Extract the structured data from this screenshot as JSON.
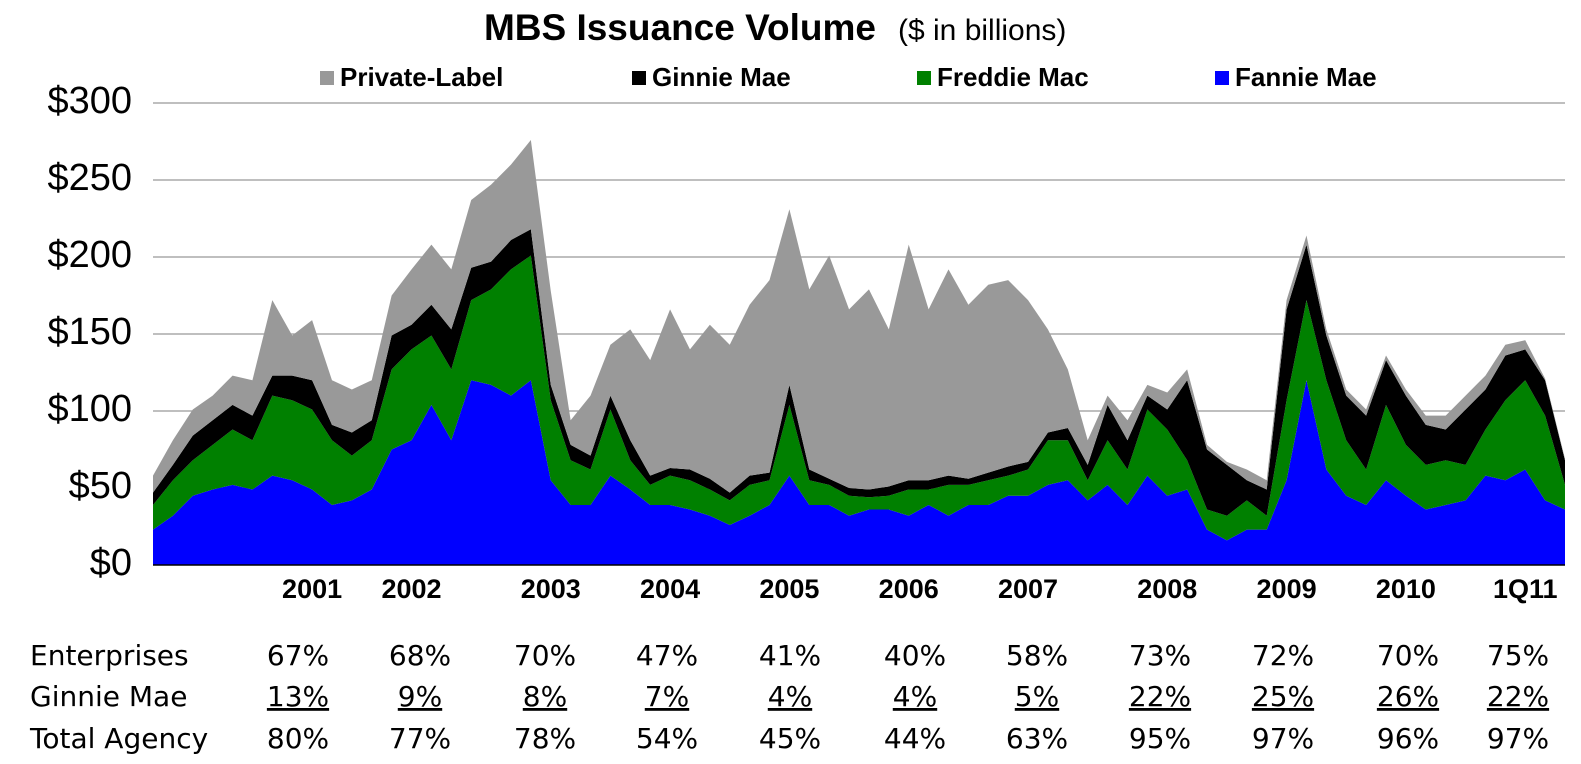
{
  "chart_data": {
    "type": "stacked_area",
    "title": "MBS Issuance Volume",
    "subtitle": "($ in billions)",
    "categories": [
      null,
      null,
      null,
      null,
      null,
      null,
      null,
      null,
      "2001",
      null,
      null,
      null,
      null,
      "2002",
      null,
      null,
      null,
      null,
      null,
      null,
      "2003",
      null,
      null,
      null,
      null,
      null,
      "2004",
      null,
      null,
      null,
      null,
      null,
      "2005",
      null,
      null,
      null,
      null,
      null,
      "2006",
      null,
      null,
      null,
      null,
      null,
      "2007",
      null,
      null,
      null,
      null,
      null,
      null,
      "2008",
      null,
      null,
      null,
      null,
      null,
      "2009",
      null,
      null,
      null,
      null,
      null,
      "2010",
      null,
      null,
      null,
      null,
      null,
      "1Q11",
      null,
      null
    ],
    "series": [
      {
        "name": "Fannie Mae",
        "color": "#0000ff",
        "values": [
          23,
          32,
          45,
          49,
          52,
          49,
          58,
          55,
          49,
          39,
          42,
          49,
          75,
          81,
          104,
          81,
          120,
          117,
          110,
          120,
          55,
          39,
          39,
          58,
          49,
          39,
          39,
          36,
          32,
          26,
          32,
          39,
          58,
          39,
          39,
          32,
          36,
          36,
          32,
          39,
          32,
          39,
          39,
          45,
          45,
          52,
          55,
          42,
          52,
          39,
          58,
          45,
          49,
          23,
          16,
          23,
          23,
          55,
          120,
          62,
          45,
          39,
          55,
          45,
          36,
          39,
          42,
          58,
          55,
          62,
          42,
          36
        ]
      },
      {
        "name": "Freddie Mac",
        "color": "#008000",
        "values": [
          16,
          23,
          23,
          29,
          36,
          32,
          52,
          52,
          52,
          42,
          29,
          32,
          52,
          59,
          45,
          46,
          52,
          62,
          82,
          81,
          52,
          29,
          23,
          43,
          19,
          13,
          19,
          19,
          17,
          16,
          20,
          16,
          46,
          16,
          13,
          13,
          8,
          9,
          17,
          10,
          20,
          13,
          16,
          13,
          17,
          29,
          26,
          13,
          29,
          23,
          43,
          43,
          19,
          13,
          16,
          19,
          9,
          52,
          52,
          58,
          36,
          23,
          49,
          33,
          29,
          29,
          23,
          30,
          52,
          58,
          55,
          16
        ]
      },
      {
        "name": "Ginnie Mae",
        "color": "#000000",
        "values": [
          8,
          10,
          16,
          16,
          16,
          16,
          13,
          16,
          19,
          10,
          15,
          13,
          22,
          16,
          20,
          26,
          21,
          18,
          19,
          17,
          10,
          10,
          9,
          9,
          13,
          6,
          5,
          7,
          7,
          5,
          6,
          5,
          13,
          7,
          4,
          5,
          5,
          6,
          6,
          6,
          6,
          4,
          5,
          6,
          5,
          5,
          8,
          10,
          23,
          19,
          9,
          13,
          52,
          39,
          33,
          13,
          17,
          59,
          36,
          29,
          29,
          35,
          29,
          32,
          26,
          20,
          36,
          26,
          29,
          20,
          23,
          16
        ]
      },
      {
        "name": "Private-Label",
        "color": "#999999",
        "values": [
          11,
          16,
          17,
          16,
          19,
          23,
          49,
          26,
          39,
          29,
          28,
          26,
          26,
          36,
          39,
          39,
          44,
          50,
          49,
          58,
          61,
          16,
          39,
          33,
          72,
          75,
          103,
          78,
          100,
          96,
          111,
          125,
          114,
          117,
          145,
          116,
          130,
          102,
          153,
          111,
          134,
          113,
          122,
          121,
          105,
          67,
          38,
          16,
          6,
          13,
          7,
          11,
          7,
          3,
          2,
          7,
          6,
          6,
          6,
          4,
          4,
          4,
          3,
          4,
          6,
          9,
          9,
          9,
          7,
          6,
          1,
          1
        ]
      }
    ],
    "ylim": [
      0,
      300
    ],
    "yticks": [
      {
        "value": 0,
        "label": "$0"
      },
      {
        "value": 50,
        "label": "$50"
      },
      {
        "value": 100,
        "label": "$100"
      },
      {
        "value": 150,
        "label": "$150"
      },
      {
        "value": 200,
        "label": "$200"
      },
      {
        "value": 250,
        "label": "$250"
      },
      {
        "value": 300,
        "label": "$300"
      }
    ],
    "grid": true,
    "legend": "top"
  },
  "table": {
    "columns": [
      "2001",
      "2002",
      "2003",
      "2004",
      "2005",
      "2006",
      "2007",
      "2008",
      "2009",
      "2010",
      "1Q11"
    ],
    "rows": [
      {
        "label": "Enterprises",
        "cells": [
          "67%",
          "68%",
          "70%",
          "47%",
          "41%",
          "40%",
          "58%",
          "73%",
          "72%",
          "70%",
          "75%"
        ]
      },
      {
        "label": "Ginnie Mae",
        "cells": [
          "13%",
          "9%",
          "8%",
          "7%",
          "4%",
          "4%",
          "5%",
          "22%",
          "25%",
          "26%",
          "22%"
        ]
      },
      {
        "label": "Total Agency",
        "cells": [
          "80%",
          "77%",
          "78%",
          "54%",
          "45%",
          "44%",
          "63%",
          "95%",
          "97%",
          "96%",
          "97%"
        ]
      }
    ]
  }
}
